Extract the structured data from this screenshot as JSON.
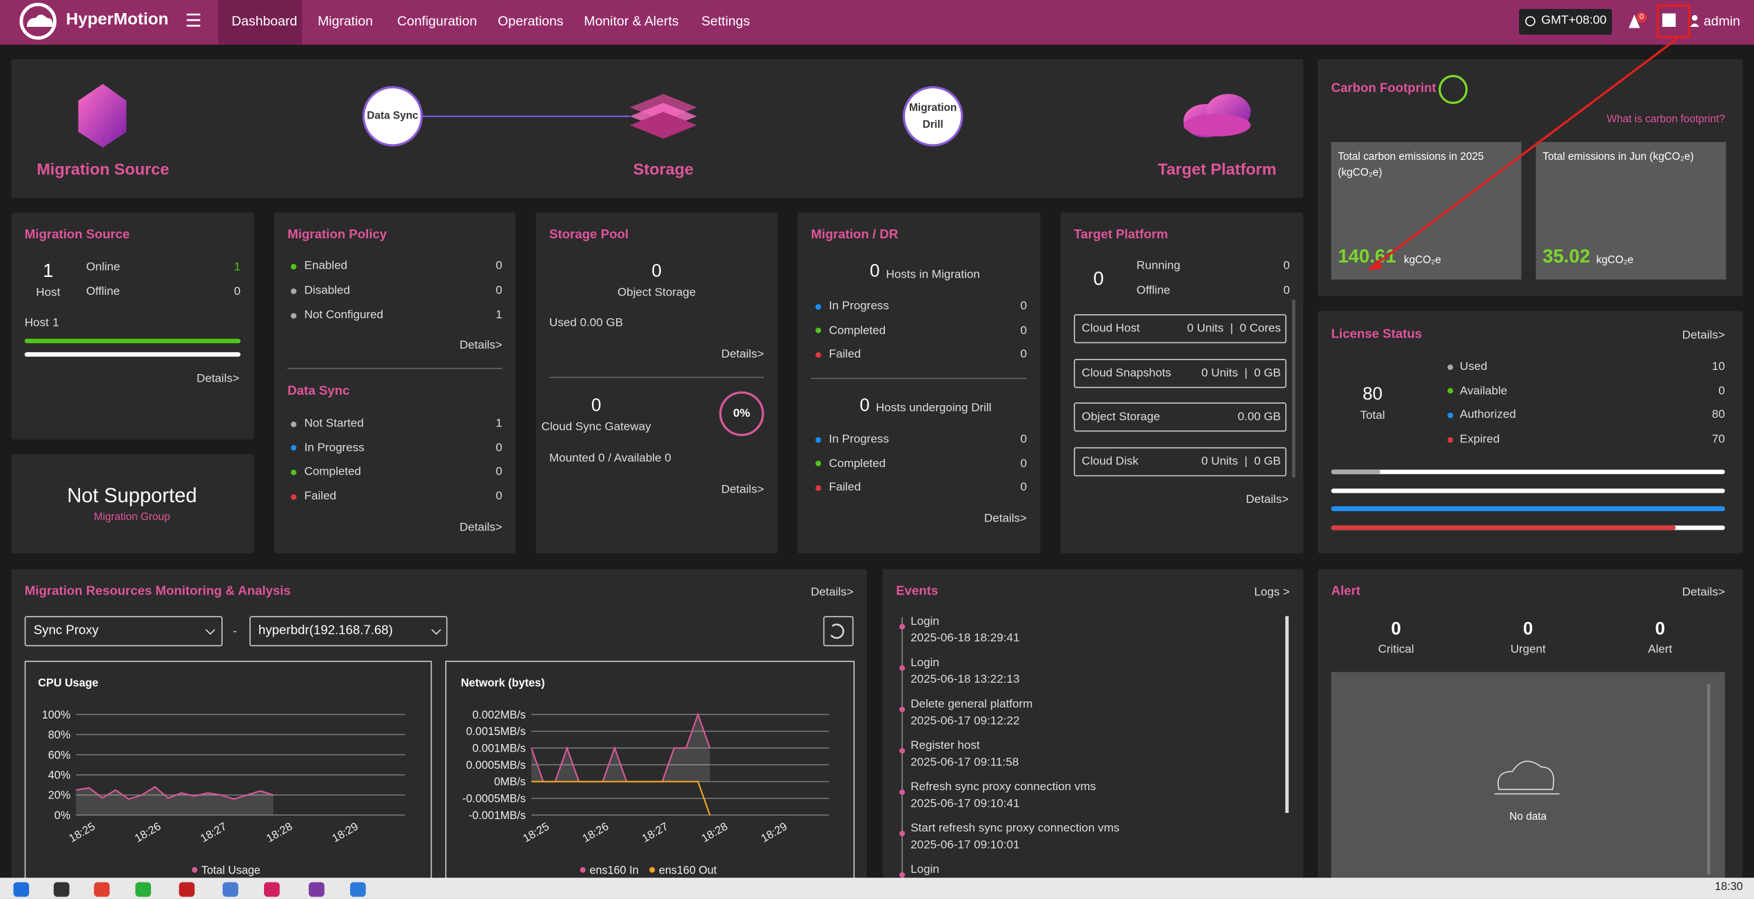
{
  "header": {
    "brand": "HyperMotion",
    "nav": [
      "Dashboard",
      "Migration",
      "Configuration",
      "Operations",
      "Monitor & Alerts",
      "Settings"
    ],
    "timezone": "GMT+08:00",
    "alert_badge": 0,
    "user": "admin"
  },
  "flow": {
    "source": "Migration Source",
    "data_sync": "Data Sync",
    "storage": "Storage",
    "drill": [
      "Migration",
      "Drill"
    ],
    "target": "Target Platform"
  },
  "migration_source": {
    "title": "Migration Source",
    "hosts": 1,
    "unit": "Host",
    "status": [
      {
        "label": "Online",
        "value": 1
      },
      {
        "label": "Offline",
        "value": 0
      }
    ],
    "host_label": "Host",
    "host_value": 1,
    "details": "Details>"
  },
  "migration_group": {
    "status": "Not Supported",
    "label": "Migration Group"
  },
  "migration_policy": {
    "title": "Migration Policy",
    "items": [
      {
        "label": "Enabled",
        "value": 0
      },
      {
        "label": "Disabled",
        "value": 0
      },
      {
        "label": "Not Configured",
        "value": 1
      }
    ],
    "details": "Details>"
  },
  "data_sync": {
    "title": "Data Sync",
    "items": [
      {
        "label": "Not Started",
        "value": 1
      },
      {
        "label": "In Progress",
        "value": 0
      },
      {
        "label": "Completed",
        "value": 0
      },
      {
        "label": "Failed",
        "value": 0
      }
    ],
    "details": "Details>"
  },
  "storage_pool": {
    "title": "Storage Pool",
    "object_storage_count": 0,
    "object_storage_label": "Object Storage",
    "used": "Used 0.00 GB",
    "details": "Details>",
    "gateway_count": 0,
    "gateway_label": "Cloud Sync Gateway",
    "gateway_percent": "0%",
    "mounted": "Mounted 0 / Available 0",
    "gateway_details": "Details>"
  },
  "migration_dr": {
    "title": "Migration / DR",
    "migration_count": 0,
    "migration_label": "Hosts in Migration",
    "migration_items": [
      {
        "label": "In Progress",
        "value": 0
      },
      {
        "label": "Completed",
        "value": 0
      },
      {
        "label": "Failed",
        "value": 0
      }
    ],
    "drill_count": 0,
    "drill_label": "Hosts undergoing Drill",
    "drill_items": [
      {
        "label": "In Progress",
        "value": 0
      },
      {
        "label": "Completed",
        "value": 0
      },
      {
        "label": "Failed",
        "value": 0
      }
    ],
    "details": "Details>"
  },
  "target_platform": {
    "title": "Target Platform",
    "count": 0,
    "status": [
      {
        "label": "Running",
        "value": 0
      },
      {
        "label": "Offline",
        "value": 0
      }
    ],
    "resources": [
      {
        "label": "Cloud Host",
        "value": "0 Units  |  0 Cores"
      },
      {
        "label": "Cloud Snapshots",
        "value": "0 Units  |  0 GB"
      },
      {
        "label": "Object Storage",
        "value": "0.00 GB"
      },
      {
        "label": "Cloud Disk",
        "value": "0 Units  |  0 GB"
      }
    ],
    "details": "Details>"
  },
  "carbon": {
    "title": "Carbon Footprint",
    "link": "What is carbon footprint?",
    "cards": [
      {
        "label": "Total carbon emissions in 2025 (kgCO₂e)",
        "value": 140.61,
        "unit": "kgCO₂e"
      },
      {
        "label": "Total emissions in Jun (kgCO₂e)",
        "value": 35.02,
        "unit": "kgCO₂e"
      }
    ]
  },
  "license": {
    "title": "License Status",
    "details": "Details>",
    "total": 80,
    "total_label": "Total",
    "items": [
      {
        "label": "Used",
        "value": 10,
        "color": "#aaaaaa"
      },
      {
        "label": "Available",
        "value": 0,
        "color": "#52c41a"
      },
      {
        "label": "Authorized",
        "value": 80,
        "color": "#1890ff"
      },
      {
        "label": "Expired",
        "value": 70,
        "color": "#e0393e"
      }
    ]
  },
  "monitoring": {
    "title": "Migration Resources Monitoring & Analysis",
    "details": "Details>",
    "select_type": "Sync Proxy",
    "separator": "-",
    "select_host": "hyperbdr(192.168.7.68)"
  },
  "chart_data": [
    {
      "type": "line",
      "title": "CPU Usage",
      "categories": [
        null,
        "18:25",
        null,
        null,
        null,
        null,
        "18:26",
        null,
        null,
        null,
        null,
        "18:27",
        null,
        null,
        null,
        null,
        "18:28",
        null,
        null,
        null,
        null,
        "18:29",
        null,
        null,
        null,
        null
      ],
      "series": [
        {
          "name": "Total Usage",
          "color": "#d9589b",
          "values": [
            25,
            27,
            17,
            25,
            16,
            20,
            28,
            17,
            22,
            19,
            22,
            20,
            16,
            20,
            24,
            20,
            null,
            null,
            null,
            null,
            null,
            null,
            null,
            null,
            null,
            null
          ]
        }
      ],
      "ylim": [
        0,
        100
      ],
      "yticks": [
        {
          "value": 0,
          "label": "0%"
        },
        {
          "value": 20,
          "label": "20%"
        },
        {
          "value": 40,
          "label": "40%"
        },
        {
          "value": 60,
          "label": "60%"
        },
        {
          "value": 80,
          "label": "80%"
        },
        {
          "value": 100,
          "label": "100%"
        }
      ],
      "grid": true
    },
    {
      "type": "line",
      "title": "Network (bytes)",
      "categories": [
        null,
        "18:25",
        null,
        null,
        null,
        null,
        "18:26",
        null,
        null,
        null,
        null,
        "18:27",
        null,
        null,
        null,
        null,
        "18:28",
        null,
        null,
        null,
        null,
        "18:29",
        null,
        null,
        null,
        null
      ],
      "series": [
        {
          "name": "ens160 In",
          "color": "#d9589b",
          "values": [
            0.001,
            0,
            0,
            0.001,
            0,
            0,
            0,
            0.001,
            0,
            0,
            0,
            0,
            0.001,
            0.001,
            0.002,
            0.001,
            null,
            null,
            null,
            null,
            null,
            null,
            null,
            null,
            null,
            null
          ]
        },
        {
          "name": "ens160 Out",
          "color": "#f5a623",
          "values": [
            0,
            0,
            0,
            0,
            0,
            0,
            0,
            0,
            0,
            0,
            0,
            0,
            0,
            0,
            0,
            -0.001,
            null,
            null,
            null,
            null,
            null,
            null,
            null,
            null,
            null,
            null
          ]
        }
      ],
      "ylim": [
        -0.001,
        0.002
      ],
      "yticks": [
        {
          "value": -0.001,
          "label": "-0.001MB/s"
        },
        {
          "value": -0.0005,
          "label": "-0.0005MB/s"
        },
        {
          "value": 0,
          "label": "0MB/s"
        },
        {
          "value": 0.0005,
          "label": "0.0005MB/s"
        },
        {
          "value": 0.001,
          "label": "0.001MB/s"
        },
        {
          "value": 0.0015,
          "label": "0.0015MB/s"
        },
        {
          "value": 0.002,
          "label": "0.002MB/s"
        }
      ],
      "grid": true
    }
  ],
  "events": {
    "title": "Events",
    "logs": "Logs >",
    "items": [
      {
        "name": "Login",
        "time": "2025-06-18 18:29:41"
      },
      {
        "name": "Login",
        "time": "2025-06-18 13:22:13"
      },
      {
        "name": "Delete general platform",
        "time": "2025-06-17 09:12:22"
      },
      {
        "name": "Register host",
        "time": "2025-06-17 09:11:58"
      },
      {
        "name": "Refresh sync proxy connection vms",
        "time": "2025-06-17 09:10:41"
      },
      {
        "name": "Start refresh sync proxy connection vms",
        "time": "2025-06-17 09:10:01"
      },
      {
        "name": "Login"
      }
    ]
  },
  "alert": {
    "title": "Alert",
    "details": "Details>",
    "counts": [
      {
        "label": "Critical",
        "value": 0
      },
      {
        "label": "Urgent",
        "value": 0
      },
      {
        "label": "Alert",
        "value": 0
      }
    ],
    "empty": "No data"
  },
  "taskbar": {
    "time": "18:30"
  }
}
